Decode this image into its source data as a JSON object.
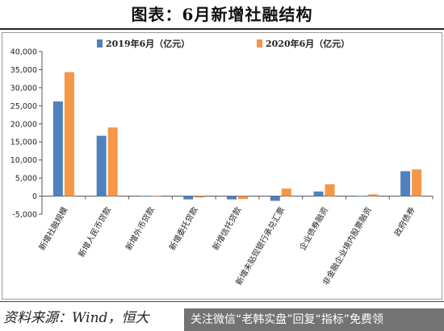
{
  "page": {
    "title": "图表：6月新增社融结构",
    "source": "资料来源：Wind，恒大",
    "overlay_text": "关注微信“老韩实盘”回复“指标”免费领"
  },
  "colors": {
    "series_2019": "#4f81bd",
    "series_2020": "#f79646",
    "axis": "#555555",
    "text": "#222222"
  },
  "chart_data": {
    "type": "bar",
    "title": "图表：6月新增社融结构",
    "xlabel": "",
    "ylabel": "",
    "ylim": [
      -5000,
      40000
    ],
    "yticks": [
      -5000,
      0,
      5000,
      10000,
      15000,
      20000,
      25000,
      30000,
      35000,
      40000
    ],
    "ytick_labels": [
      "-5,000",
      "0",
      "5,000",
      "10,000",
      "15,000",
      "20,000",
      "25,000",
      "30,000",
      "35,000",
      "40,000"
    ],
    "grid": false,
    "legend_position": "top",
    "categories": [
      "新增社融规模",
      "新增人民币贷款",
      "新增外币贷款",
      "新增委托贷款",
      "新增信托贷款",
      "新增未贴现银行承兑汇票",
      "企业债券融资",
      "非金融企业境内股票融资",
      "政府债券"
    ],
    "series": [
      {
        "name": "2019年6月（亿元）",
        "values": [
          26200,
          16700,
          100,
          -900,
          -900,
          -1300,
          1300,
          100,
          6900
        ]
      },
      {
        "name": "2020年6月（亿元）",
        "values": [
          34300,
          19000,
          50,
          -400,
          -800,
          2100,
          3300,
          500,
          7400
        ]
      }
    ]
  }
}
